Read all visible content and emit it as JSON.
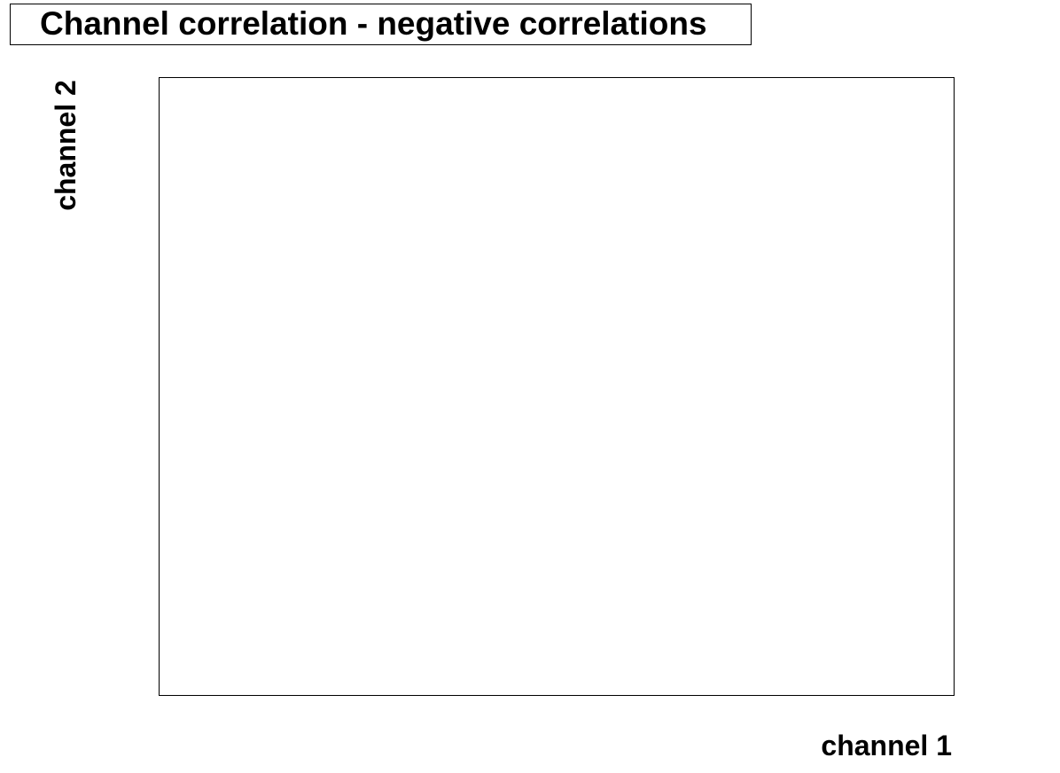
{
  "chart_data": {
    "type": "scatter",
    "title": "Channel correlation - negative correlations",
    "xlabel": "channel 1",
    "ylabel": "channel 2",
    "series": [
      {
        "x": [],
        "y": []
      }
    ],
    "grid": false,
    "legend": "none",
    "colors": {
      "frame": "#000000",
      "background": "#ffffff"
    }
  }
}
